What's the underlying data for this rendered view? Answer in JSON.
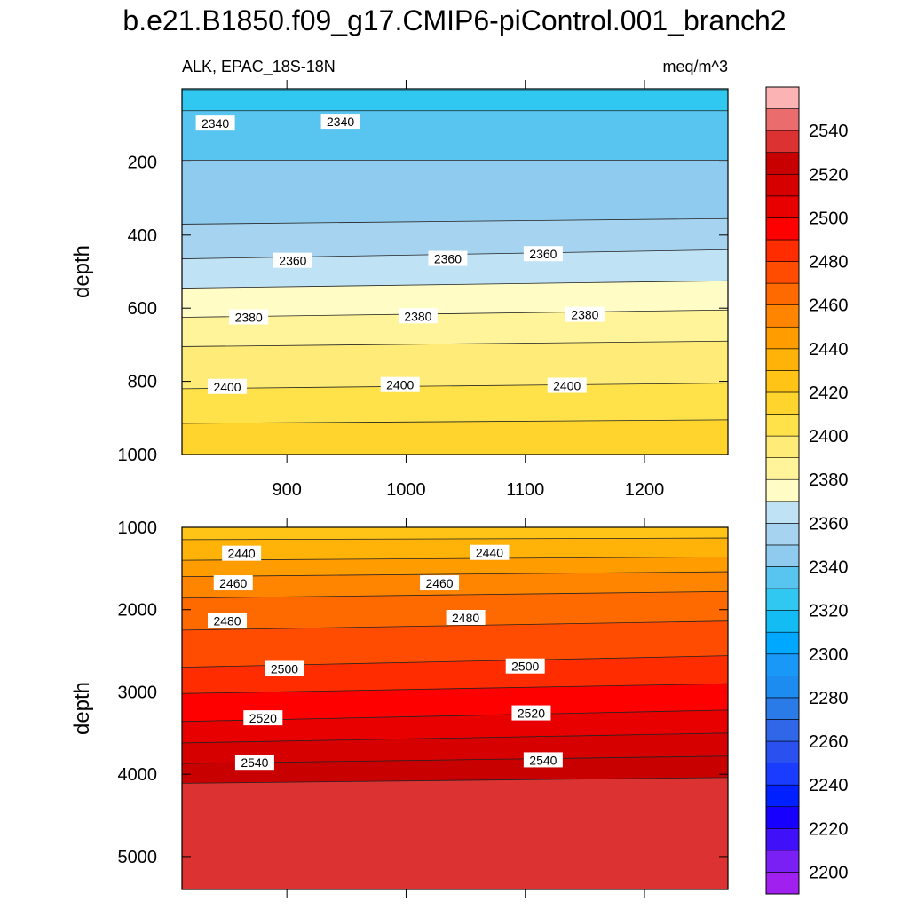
{
  "title": "b.e21.B1850.f09_g17.CMIP6-piControl.001_branch2",
  "chart_data": {
    "type": "contour",
    "variable": "ALK",
    "region": "EPAC_18S-18N",
    "units": "meq/m^3",
    "left_label": "ALK, EPAC_18S-18N",
    "right_label": "meq/m^3",
    "xlabel": "",
    "xlim": [
      812,
      1270
    ],
    "xticks": [
      900,
      1000,
      1100,
      1200
    ],
    "upper_panel": {
      "ylabel": "depth",
      "ylim": [
        0,
        1000
      ],
      "yticks": [
        200,
        400,
        600,
        800,
        1000
      ],
      "bands": [
        {
          "depth_left": 5,
          "depth_right": 5,
          "lower": 2320,
          "upper": 2330
        },
        {
          "depth_left": 60,
          "depth_right": 60,
          "lower": 2330,
          "upper": 2340
        },
        {
          "depth_left": 195,
          "depth_right": 195,
          "lower": 2340,
          "upper": 2350
        },
        {
          "depth_left": 370,
          "depth_right": 355,
          "lower": 2350,
          "upper": 2360
        },
        {
          "depth_left": 465,
          "depth_right": 440,
          "lower": 2360,
          "upper": 2370
        },
        {
          "depth_left": 545,
          "depth_right": 525,
          "lower": 2370,
          "upper": 2380
        },
        {
          "depth_left": 625,
          "depth_right": 605,
          "lower": 2380,
          "upper": 2390
        },
        {
          "depth_left": 705,
          "depth_right": 690,
          "lower": 2390,
          "upper": 2400
        },
        {
          "depth_left": 820,
          "depth_right": 805,
          "lower": 2400,
          "upper": 2410
        },
        {
          "depth_left": 915,
          "depth_right": 905,
          "lower": 2410,
          "upper": 2420
        }
      ],
      "contour_labels": [
        {
          "x": 840,
          "depth": 95,
          "text": "2340"
        },
        {
          "x": 945,
          "depth": 90,
          "text": "2340"
        },
        {
          "x": 905,
          "depth": 470,
          "text": "2360"
        },
        {
          "x": 1035,
          "depth": 465,
          "text": "2360"
        },
        {
          "x": 1115,
          "depth": 452,
          "text": "2360"
        },
        {
          "x": 868,
          "depth": 625,
          "text": "2380"
        },
        {
          "x": 1010,
          "depth": 622,
          "text": "2380"
        },
        {
          "x": 1150,
          "depth": 618,
          "text": "2380"
        },
        {
          "x": 850,
          "depth": 815,
          "text": "2400"
        },
        {
          "x": 995,
          "depth": 810,
          "text": "2400"
        },
        {
          "x": 1135,
          "depth": 812,
          "text": "2400"
        }
      ]
    },
    "lower_panel": {
      "ylabel": "depth",
      "ylim": [
        1000,
        5400
      ],
      "yticks": [
        1000,
        2000,
        3000,
        4000,
        5000
      ],
      "bands": [
        {
          "depth_left": 1000,
          "depth_right": 1000,
          "lower": 2420,
          "upper": 2430
        },
        {
          "depth_left": 1150,
          "depth_right": 1130,
          "lower": 2430,
          "upper": 2440
        },
        {
          "depth_left": 1400,
          "depth_right": 1360,
          "lower": 2440,
          "upper": 2450
        },
        {
          "depth_left": 1600,
          "depth_right": 1540,
          "lower": 2450,
          "upper": 2460
        },
        {
          "depth_left": 1860,
          "depth_right": 1780,
          "lower": 2460,
          "upper": 2470
        },
        {
          "depth_left": 2250,
          "depth_right": 2140,
          "lower": 2470,
          "upper": 2480
        },
        {
          "depth_left": 2700,
          "depth_right": 2560,
          "lower": 2480,
          "upper": 2490
        },
        {
          "depth_left": 3020,
          "depth_right": 2900,
          "lower": 2490,
          "upper": 2500
        },
        {
          "depth_left": 3360,
          "depth_right": 3220,
          "lower": 2500,
          "upper": 2510
        },
        {
          "depth_left": 3620,
          "depth_right": 3500,
          "lower": 2510,
          "upper": 2520
        },
        {
          "depth_left": 3870,
          "depth_right": 3780,
          "lower": 2520,
          "upper": 2530
        },
        {
          "depth_left": 4110,
          "depth_right": 4040,
          "lower": 2530,
          "upper": 2560
        }
      ],
      "contour_labels": [
        {
          "x": 862,
          "depth": 1320,
          "text": "2440"
        },
        {
          "x": 1070,
          "depth": 1310,
          "text": "2440"
        },
        {
          "x": 855,
          "depth": 1680,
          "text": "2460"
        },
        {
          "x": 1028,
          "depth": 1680,
          "text": "2460"
        },
        {
          "x": 850,
          "depth": 2140,
          "text": "2480"
        },
        {
          "x": 1050,
          "depth": 2100,
          "text": "2480"
        },
        {
          "x": 898,
          "depth": 2720,
          "text": "2500"
        },
        {
          "x": 1100,
          "depth": 2690,
          "text": "2500"
        },
        {
          "x": 880,
          "depth": 3320,
          "text": "2520"
        },
        {
          "x": 1105,
          "depth": 3260,
          "text": "2520"
        },
        {
          "x": 873,
          "depth": 3860,
          "text": "2540"
        },
        {
          "x": 1115,
          "depth": 3830,
          "text": "2540"
        }
      ]
    },
    "colorbar": {
      "levels": [
        2200,
        2210,
        2220,
        2230,
        2240,
        2250,
        2260,
        2270,
        2280,
        2290,
        2300,
        2310,
        2320,
        2330,
        2340,
        2350,
        2360,
        2370,
        2380,
        2390,
        2400,
        2410,
        2420,
        2430,
        2440,
        2450,
        2460,
        2470,
        2480,
        2490,
        2500,
        2510,
        2520,
        2530,
        2540,
        2550
      ],
      "labels": [
        "2200",
        "2220",
        "2240",
        "2260",
        "2280",
        "2300",
        "2320",
        "2340",
        "2360",
        "2380",
        "2400",
        "2420",
        "2440",
        "2460",
        "2480",
        "2500",
        "2520",
        "2540"
      ],
      "colors": [
        "#a020f0",
        "#7a20f5",
        "#4010f8",
        "#1800ff",
        "#0020ff",
        "#1a3cff",
        "#2a50f0",
        "#3066e8",
        "#2a7ae8",
        "#1c8cf0",
        "#1a98f8",
        "#00a8ff",
        "#14bcf4",
        "#30c8f0",
        "#58c4f0",
        "#8ecbee",
        "#a6d4f0",
        "#bfe2f4",
        "#fffcc6",
        "#fff49a",
        "#ffec78",
        "#ffe24a",
        "#ffd42c",
        "#ffc416",
        "#ffb208",
        "#ff9c00",
        "#ff8400",
        "#ff6a00",
        "#ff4c00",
        "#ff2c00",
        "#ff0000",
        "#e80000",
        "#d60000",
        "#c80000",
        "#dd3232",
        "#ea6c6c",
        "#fbb3b3"
      ]
    }
  }
}
